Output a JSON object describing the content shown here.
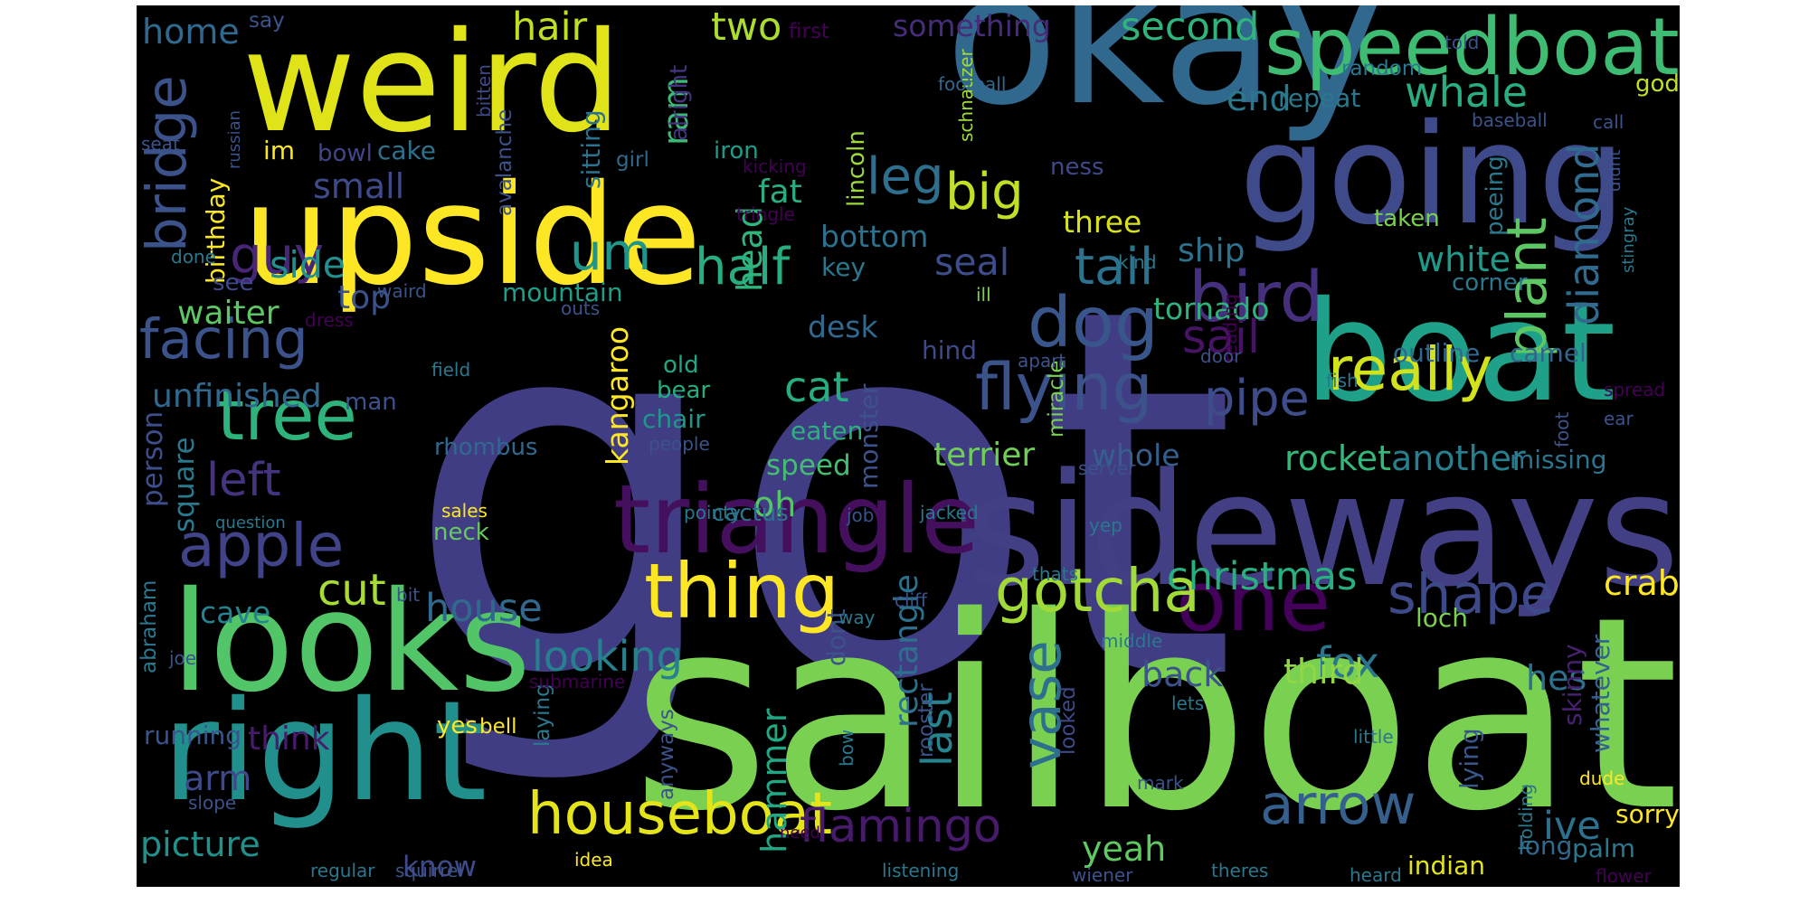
{
  "palette": {
    "background": "#000000",
    "yellow": "#fde725",
    "lime": "#7ad151",
    "green": "#22a884",
    "teal": "#2a788e",
    "blue": "#414487",
    "purple": "#440154"
  },
  "words": [
    {
      "text": "got",
      "color": "#413d84"
    },
    {
      "text": "sailboat",
      "color": "#7ad151"
    },
    {
      "text": "okay",
      "color": "#31688e"
    },
    {
      "text": "sideways",
      "color": "#423f85"
    },
    {
      "text": "weird",
      "color": "#dfe318"
    },
    {
      "text": "upside",
      "color": "#fde725"
    },
    {
      "text": "going",
      "color": "#3e4a89"
    },
    {
      "text": "boat",
      "color": "#1fa088"
    },
    {
      "text": "looks",
      "color": "#52c569"
    },
    {
      "text": "right",
      "color": "#21908d"
    },
    {
      "text": "triangle",
      "color": "#440f5d"
    },
    {
      "text": "speedboat",
      "color": "#3fbc73"
    },
    {
      "text": "bird",
      "color": "#46307e"
    },
    {
      "text": "thing",
      "color": "#fde725"
    },
    {
      "text": "one",
      "color": "#44015a"
    },
    {
      "text": "gotcha",
      "color": "#a2da37"
    },
    {
      "text": "dog",
      "color": "#39568c"
    },
    {
      "text": "really",
      "color": "#d2e21b"
    },
    {
      "text": "flying",
      "color": "#3b528b"
    },
    {
      "text": "tree",
      "color": "#2eb37c"
    },
    {
      "text": "apple",
      "color": "#404387"
    },
    {
      "text": "houseboat",
      "color": "#e5e419"
    },
    {
      "text": "arrow",
      "color": "#355f8d"
    },
    {
      "text": "bridge",
      "color": "#3b528b"
    },
    {
      "text": "facing",
      "color": "#3b528b"
    },
    {
      "text": "shape",
      "color": "#3e4989"
    },
    {
      "text": "vase",
      "color": "#2d708e"
    },
    {
      "text": "plant",
      "color": "#5dc863"
    },
    {
      "text": "pipe",
      "color": "#3e4c8a"
    },
    {
      "text": "diamond",
      "color": "#306a8e"
    },
    {
      "text": "half",
      "color": "#27ad81"
    },
    {
      "text": "tail",
      "color": "#2c728e"
    },
    {
      "text": "guy",
      "color": "#482677"
    },
    {
      "text": "big",
      "color": "#c0df25"
    },
    {
      "text": "um",
      "color": "#1f968b"
    },
    {
      "text": "leg",
      "color": "#2e6f8e"
    },
    {
      "text": "left",
      "color": "#46337f"
    },
    {
      "text": "flamingo",
      "color": "#481a6c"
    },
    {
      "text": "sail",
      "color": "#471365"
    },
    {
      "text": "hair",
      "color": "#bddf26"
    },
    {
      "text": "whale",
      "color": "#28ae80"
    },
    {
      "text": "christmas",
      "color": "#29af7f"
    },
    {
      "text": "cut",
      "color": "#a8db34"
    },
    {
      "text": "house",
      "color": "#31688e"
    },
    {
      "text": "looking",
      "color": "#27808e"
    },
    {
      "text": "last",
      "color": "#25848e"
    },
    {
      "text": "fox",
      "color": "#2a768e"
    },
    {
      "text": "ive",
      "color": "#2c718e"
    },
    {
      "text": "cat",
      "color": "#26ad81"
    },
    {
      "text": "picture",
      "color": "#21918c"
    },
    {
      "text": "second",
      "color": "#2fb47c"
    },
    {
      "text": "two",
      "color": "#addc30"
    },
    {
      "text": "home",
      "color": "#31688e"
    },
    {
      "text": "small",
      "color": "#3e4a89"
    },
    {
      "text": "end",
      "color": "#2a788e"
    },
    {
      "text": "seal",
      "color": "#3d4d8a"
    },
    {
      "text": "side",
      "color": "#218f8d"
    },
    {
      "text": "white",
      "color": "#1f9a8a"
    },
    {
      "text": "ship",
      "color": "#2c728e"
    },
    {
      "text": "rocket",
      "color": "#35b779"
    },
    {
      "text": "another",
      "color": "#277f8e"
    },
    {
      "text": "back",
      "color": "#3b528b"
    },
    {
      "text": "third",
      "color": "#90d743"
    },
    {
      "text": "yeah",
      "color": "#5ec962"
    },
    {
      "text": "crab",
      "color": "#fde725"
    },
    {
      "text": "arm",
      "color": "#3e4989"
    },
    {
      "text": "hes",
      "color": "#2d708e"
    },
    {
      "text": "hammer",
      "color": "#22a785"
    },
    {
      "text": "rectangle",
      "color": "#2d708e"
    },
    {
      "text": "oh",
      "color": "#54c568"
    },
    {
      "text": "ram",
      "color": "#3aba76"
    },
    {
      "text": "head",
      "color": "#2fb47c"
    },
    {
      "text": "top",
      "color": "#3b518b"
    },
    {
      "text": "waiter",
      "color": "#5cc863"
    },
    {
      "text": "unfinished",
      "color": "#31688e"
    },
    {
      "text": "cave",
      "color": "#26828e"
    },
    {
      "text": "fat",
      "color": "#29af7f"
    },
    {
      "text": "bottom",
      "color": "#2c728e"
    },
    {
      "text": "three",
      "color": "#d8e219"
    },
    {
      "text": "tornado",
      "color": "#2eb37c"
    },
    {
      "text": "terrier",
      "color": "#6ece58"
    },
    {
      "text": "whole",
      "color": "#35608d"
    },
    {
      "text": "desk",
      "color": "#31688e"
    },
    {
      "text": "kangaroo",
      "color": "#fde725"
    },
    {
      "text": "running",
      "color": "#3a548c"
    },
    {
      "text": "think",
      "color": "#481b6d"
    },
    {
      "text": "know",
      "color": "#3e4a89"
    },
    {
      "text": "something",
      "color": "#472c7a"
    },
    {
      "text": "speed",
      "color": "#42be71"
    },
    {
      "text": "person",
      "color": "#3d4e8a"
    },
    {
      "text": "square",
      "color": "#2a788e"
    },
    {
      "text": "im",
      "color": "#fde725"
    },
    {
      "text": "cake",
      "color": "#2c728e"
    },
    {
      "text": "bowl",
      "color": "#404688"
    },
    {
      "text": "birthday",
      "color": "#fde725"
    },
    {
      "text": "see",
      "color": "#3e4a89"
    },
    {
      "text": "repeat",
      "color": "#2a788e"
    },
    {
      "text": "outline",
      "color": "#31688e"
    },
    {
      "text": "camel",
      "color": "#33638d"
    },
    {
      "text": "missing",
      "color": "#2b748e"
    },
    {
      "text": "whatever",
      "color": "#33638d"
    },
    {
      "text": "long",
      "color": "#31688e"
    },
    {
      "text": "lying",
      "color": "#39568c"
    },
    {
      "text": "palm",
      "color": "#2a788e"
    },
    {
      "text": "sorry",
      "color": "#fde725"
    },
    {
      "text": "indian",
      "color": "#e2e418"
    },
    {
      "text": "loch",
      "color": "#7ad151"
    },
    {
      "text": "skinny",
      "color": "#482071"
    },
    {
      "text": "dont",
      "color": "#3b528b"
    },
    {
      "text": "god",
      "color": "#c2df23"
    },
    {
      "text": "old",
      "color": "#22a785"
    },
    {
      "text": "bear",
      "color": "#25ac82"
    },
    {
      "text": "chair",
      "color": "#1f988b"
    },
    {
      "text": "man",
      "color": "#3b528b"
    },
    {
      "text": "mountain",
      "color": "#1f9f88"
    },
    {
      "text": "rhombus",
      "color": "#31688e"
    },
    {
      "text": "eaten",
      "color": "#2cb17e"
    },
    {
      "text": "cactus",
      "color": "#2c728e"
    },
    {
      "text": "neck",
      "color": "#65cb5e"
    },
    {
      "text": "key",
      "color": "#2a788e"
    },
    {
      "text": "hind",
      "color": "#3e4989"
    },
    {
      "text": "monster",
      "color": "#3b528b"
    },
    {
      "text": "sitting",
      "color": "#2c728e"
    },
    {
      "text": "iron",
      "color": "#1e9b8a"
    },
    {
      "text": "alright",
      "color": "#46337f"
    },
    {
      "text": "lincoln",
      "color": "#9dd93b"
    },
    {
      "text": "miracle",
      "color": "#7ad151"
    },
    {
      "text": "taken",
      "color": "#7ad151"
    },
    {
      "text": "ness",
      "color": "#3e4989"
    },
    {
      "text": "peeing",
      "color": "#2a788e"
    },
    {
      "text": "corner",
      "color": "#2a788e"
    },
    {
      "text": "yes",
      "color": "#fde725"
    },
    {
      "text": "bell",
      "color": "#fde725"
    },
    {
      "text": "laying",
      "color": "#2a788e"
    },
    {
      "text": "anyways",
      "color": "#3b528b"
    },
    {
      "text": "looked",
      "color": "#3e4989"
    },
    {
      "text": "rooster",
      "color": "#3b528b"
    },
    {
      "text": "bow",
      "color": "#2a788e"
    },
    {
      "text": "say",
      "color": "#3b528b"
    },
    {
      "text": "first",
      "color": "#440154"
    },
    {
      "text": "bitten",
      "color": "#3e4989"
    },
    {
      "text": "seat",
      "color": "#3b528b"
    },
    {
      "text": "avalanche",
      "color": "#3b528b"
    },
    {
      "text": "girl",
      "color": "#31688e"
    },
    {
      "text": "kicking",
      "color": "#440154"
    },
    {
      "text": "tringle",
      "color": "#440154"
    },
    {
      "text": "schnauzer",
      "color": "#a0da39"
    },
    {
      "text": "football",
      "color": "#31688e"
    },
    {
      "text": "random",
      "color": "#2a788e"
    },
    {
      "text": "told",
      "color": "#3b528b"
    },
    {
      "text": "baseball",
      "color": "#3b528b"
    },
    {
      "text": "call",
      "color": "#3b528b"
    },
    {
      "text": "stingray",
      "color": "#2a788e"
    },
    {
      "text": "didnt",
      "color": "#3b528b"
    },
    {
      "text": "done",
      "color": "#2a788e"
    },
    {
      "text": "russian",
      "color": "#3b528b"
    },
    {
      "text": "waird",
      "color": "#3b528b"
    },
    {
      "text": "dress",
      "color": "#440154"
    },
    {
      "text": "outs",
      "color": "#3b528b"
    },
    {
      "text": "field",
      "color": "#2a788e"
    },
    {
      "text": "people",
      "color": "#3b528b"
    },
    {
      "text": "question",
      "color": "#2a788e"
    },
    {
      "text": "sales",
      "color": "#fde725"
    },
    {
      "text": "pointy",
      "color": "#2a788e"
    },
    {
      "text": "job",
      "color": "#3b528b"
    },
    {
      "text": "jacked",
      "color": "#2a788e"
    },
    {
      "text": "server",
      "color": "#3b528b"
    },
    {
      "text": "yep",
      "color": "#2a788e"
    },
    {
      "text": "kind",
      "color": "#2a788e"
    },
    {
      "text": "ill",
      "color": "#7ad151"
    },
    {
      "text": "apart",
      "color": "#3b528b"
    },
    {
      "text": "reading",
      "color": "#440154"
    },
    {
      "text": "door",
      "color": "#3b528b"
    },
    {
      "text": "fish",
      "color": "#2a788e"
    },
    {
      "text": "foot",
      "color": "#3b528b"
    },
    {
      "text": "spread",
      "color": "#440154"
    },
    {
      "text": "ear",
      "color": "#3b528b"
    },
    {
      "text": "thats",
      "color": "#2a788e"
    },
    {
      "text": "cliff",
      "color": "#3b528b"
    },
    {
      "text": "way",
      "color": "#2a788e"
    },
    {
      "text": "middle",
      "color": "#2a788e"
    },
    {
      "text": "abraham",
      "color": "#2a788e"
    },
    {
      "text": "bit",
      "color": "#3b528b"
    },
    {
      "text": "joe",
      "color": "#3b528b"
    },
    {
      "text": "submarine",
      "color": "#440154"
    },
    {
      "text": "lets",
      "color": "#2a788e"
    },
    {
      "text": "little",
      "color": "#2a788e"
    },
    {
      "text": "mark",
      "color": "#3b528b"
    },
    {
      "text": "holding",
      "color": "#2a788e"
    },
    {
      "text": "dude",
      "color": "#fde725"
    },
    {
      "text": "slope",
      "color": "#3b528b"
    },
    {
      "text": "regular",
      "color": "#2a788e"
    },
    {
      "text": "squirrel",
      "color": "#3b528b"
    },
    {
      "text": "idea",
      "color": "#fde725"
    },
    {
      "text": "need",
      "color": "#440154"
    },
    {
      "text": "listening",
      "color": "#2a788e"
    },
    {
      "text": "wiener",
      "color": "#3b528b"
    },
    {
      "text": "theres",
      "color": "#2a788e"
    },
    {
      "text": "heard",
      "color": "#2a788e"
    },
    {
      "text": "flower",
      "color": "#440154"
    }
  ]
}
